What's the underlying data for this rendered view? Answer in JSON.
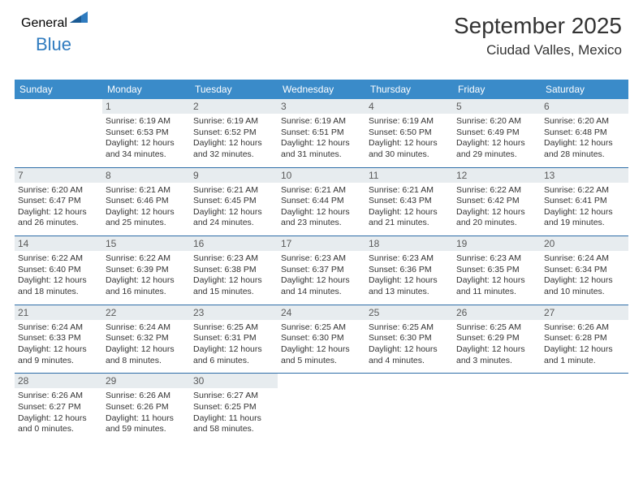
{
  "logo": {
    "part1": "General",
    "part2": "Blue"
  },
  "header": {
    "month": "September 2025",
    "location": "Ciudad Valles, Mexico"
  },
  "colors": {
    "header_bg": "#3a8bc9",
    "daynum_bg": "#e7ecef",
    "row_border": "#2f6ea8",
    "logo_gray": "#4a4a4a",
    "logo_blue": "#2f7bbf"
  },
  "dow": [
    "Sunday",
    "Monday",
    "Tuesday",
    "Wednesday",
    "Thursday",
    "Friday",
    "Saturday"
  ],
  "weeks": [
    [
      null,
      {
        "n": "1",
        "sr": "Sunrise: 6:19 AM",
        "ss": "Sunset: 6:53 PM",
        "d1": "Daylight: 12 hours",
        "d2": "and 34 minutes."
      },
      {
        "n": "2",
        "sr": "Sunrise: 6:19 AM",
        "ss": "Sunset: 6:52 PM",
        "d1": "Daylight: 12 hours",
        "d2": "and 32 minutes."
      },
      {
        "n": "3",
        "sr": "Sunrise: 6:19 AM",
        "ss": "Sunset: 6:51 PM",
        "d1": "Daylight: 12 hours",
        "d2": "and 31 minutes."
      },
      {
        "n": "4",
        "sr": "Sunrise: 6:19 AM",
        "ss": "Sunset: 6:50 PM",
        "d1": "Daylight: 12 hours",
        "d2": "and 30 minutes."
      },
      {
        "n": "5",
        "sr": "Sunrise: 6:20 AM",
        "ss": "Sunset: 6:49 PM",
        "d1": "Daylight: 12 hours",
        "d2": "and 29 minutes."
      },
      {
        "n": "6",
        "sr": "Sunrise: 6:20 AM",
        "ss": "Sunset: 6:48 PM",
        "d1": "Daylight: 12 hours",
        "d2": "and 28 minutes."
      }
    ],
    [
      {
        "n": "7",
        "sr": "Sunrise: 6:20 AM",
        "ss": "Sunset: 6:47 PM",
        "d1": "Daylight: 12 hours",
        "d2": "and 26 minutes."
      },
      {
        "n": "8",
        "sr": "Sunrise: 6:21 AM",
        "ss": "Sunset: 6:46 PM",
        "d1": "Daylight: 12 hours",
        "d2": "and 25 minutes."
      },
      {
        "n": "9",
        "sr": "Sunrise: 6:21 AM",
        "ss": "Sunset: 6:45 PM",
        "d1": "Daylight: 12 hours",
        "d2": "and 24 minutes."
      },
      {
        "n": "10",
        "sr": "Sunrise: 6:21 AM",
        "ss": "Sunset: 6:44 PM",
        "d1": "Daylight: 12 hours",
        "d2": "and 23 minutes."
      },
      {
        "n": "11",
        "sr": "Sunrise: 6:21 AM",
        "ss": "Sunset: 6:43 PM",
        "d1": "Daylight: 12 hours",
        "d2": "and 21 minutes."
      },
      {
        "n": "12",
        "sr": "Sunrise: 6:22 AM",
        "ss": "Sunset: 6:42 PM",
        "d1": "Daylight: 12 hours",
        "d2": "and 20 minutes."
      },
      {
        "n": "13",
        "sr": "Sunrise: 6:22 AM",
        "ss": "Sunset: 6:41 PM",
        "d1": "Daylight: 12 hours",
        "d2": "and 19 minutes."
      }
    ],
    [
      {
        "n": "14",
        "sr": "Sunrise: 6:22 AM",
        "ss": "Sunset: 6:40 PM",
        "d1": "Daylight: 12 hours",
        "d2": "and 18 minutes."
      },
      {
        "n": "15",
        "sr": "Sunrise: 6:22 AM",
        "ss": "Sunset: 6:39 PM",
        "d1": "Daylight: 12 hours",
        "d2": "and 16 minutes."
      },
      {
        "n": "16",
        "sr": "Sunrise: 6:23 AM",
        "ss": "Sunset: 6:38 PM",
        "d1": "Daylight: 12 hours",
        "d2": "and 15 minutes."
      },
      {
        "n": "17",
        "sr": "Sunrise: 6:23 AM",
        "ss": "Sunset: 6:37 PM",
        "d1": "Daylight: 12 hours",
        "d2": "and 14 minutes."
      },
      {
        "n": "18",
        "sr": "Sunrise: 6:23 AM",
        "ss": "Sunset: 6:36 PM",
        "d1": "Daylight: 12 hours",
        "d2": "and 13 minutes."
      },
      {
        "n": "19",
        "sr": "Sunrise: 6:23 AM",
        "ss": "Sunset: 6:35 PM",
        "d1": "Daylight: 12 hours",
        "d2": "and 11 minutes."
      },
      {
        "n": "20",
        "sr": "Sunrise: 6:24 AM",
        "ss": "Sunset: 6:34 PM",
        "d1": "Daylight: 12 hours",
        "d2": "and 10 minutes."
      }
    ],
    [
      {
        "n": "21",
        "sr": "Sunrise: 6:24 AM",
        "ss": "Sunset: 6:33 PM",
        "d1": "Daylight: 12 hours",
        "d2": "and 9 minutes."
      },
      {
        "n": "22",
        "sr": "Sunrise: 6:24 AM",
        "ss": "Sunset: 6:32 PM",
        "d1": "Daylight: 12 hours",
        "d2": "and 8 minutes."
      },
      {
        "n": "23",
        "sr": "Sunrise: 6:25 AM",
        "ss": "Sunset: 6:31 PM",
        "d1": "Daylight: 12 hours",
        "d2": "and 6 minutes."
      },
      {
        "n": "24",
        "sr": "Sunrise: 6:25 AM",
        "ss": "Sunset: 6:30 PM",
        "d1": "Daylight: 12 hours",
        "d2": "and 5 minutes."
      },
      {
        "n": "25",
        "sr": "Sunrise: 6:25 AM",
        "ss": "Sunset: 6:30 PM",
        "d1": "Daylight: 12 hours",
        "d2": "and 4 minutes."
      },
      {
        "n": "26",
        "sr": "Sunrise: 6:25 AM",
        "ss": "Sunset: 6:29 PM",
        "d1": "Daylight: 12 hours",
        "d2": "and 3 minutes."
      },
      {
        "n": "27",
        "sr": "Sunrise: 6:26 AM",
        "ss": "Sunset: 6:28 PM",
        "d1": "Daylight: 12 hours",
        "d2": "and 1 minute."
      }
    ],
    [
      {
        "n": "28",
        "sr": "Sunrise: 6:26 AM",
        "ss": "Sunset: 6:27 PM",
        "d1": "Daylight: 12 hours",
        "d2": "and 0 minutes."
      },
      {
        "n": "29",
        "sr": "Sunrise: 6:26 AM",
        "ss": "Sunset: 6:26 PM",
        "d1": "Daylight: 11 hours",
        "d2": "and 59 minutes."
      },
      {
        "n": "30",
        "sr": "Sunrise: 6:27 AM",
        "ss": "Sunset: 6:25 PM",
        "d1": "Daylight: 11 hours",
        "d2": "and 58 minutes."
      },
      null,
      null,
      null,
      null
    ]
  ]
}
